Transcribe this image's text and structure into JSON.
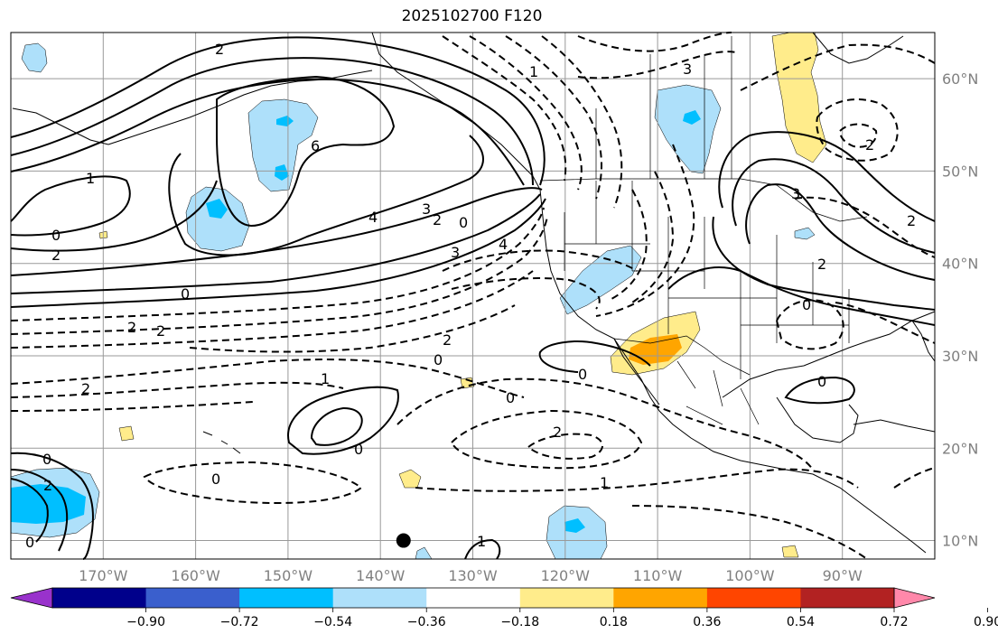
{
  "title": "2025102700 F120",
  "map": {
    "lon_range": [
      -180,
      -80
    ],
    "lat_range": [
      8,
      65
    ],
    "lat_labels": [
      "10°N",
      "20°N",
      "30°N",
      "40°N",
      "50°N",
      "60°N"
    ],
    "lon_labels": [
      "170°W",
      "160°W",
      "150°W",
      "140°W",
      "130°W",
      "120°W",
      "110°W",
      "100°W",
      "90°W"
    ],
    "marker": {
      "lon": -137.5,
      "lat": 10,
      "label": ""
    }
  },
  "colorbar": {
    "tick_labels": [
      "−0.90",
      "−0.72",
      "−0.54",
      "−0.36",
      "−0.18",
      "0.18",
      "0.36",
      "0.54",
      "0.72",
      "0.90"
    ],
    "colors": [
      "#9932cc",
      "#00008b",
      "#3a5fcd",
      "#00bfff",
      "#aee0fa",
      "#ffffff",
      "#ffec8b",
      "#ffa500",
      "#ff4500",
      "#b22222",
      "#ff88aa"
    ]
  },
  "contour_labels": [
    {
      "text": "6"
    },
    {
      "text": "4"
    },
    {
      "text": "3"
    },
    {
      "text": "2"
    },
    {
      "text": "1"
    },
    {
      "text": "0"
    },
    {
      "text": "2"
    },
    {
      "text": "0"
    },
    {
      "text": "2"
    },
    {
      "text": "2"
    },
    {
      "text": "2"
    },
    {
      "text": "0"
    },
    {
      "text": "4"
    },
    {
      "text": "3"
    },
    {
      "text": "2"
    },
    {
      "text": "0"
    },
    {
      "text": "1"
    },
    {
      "text": "0"
    },
    {
      "text": "0"
    },
    {
      "text": "2"
    },
    {
      "text": "1"
    },
    {
      "text": "0"
    },
    {
      "text": "0"
    },
    {
      "text": "2"
    },
    {
      "text": "0"
    },
    {
      "text": "0"
    },
    {
      "text": "3"
    },
    {
      "text": "3"
    },
    {
      "text": "2"
    },
    {
      "text": "1"
    },
    {
      "text": "0"
    },
    {
      "text": "2"
    },
    {
      "text": "2"
    },
    {
      "text": "0"
    },
    {
      "text": "2"
    },
    {
      "text": "1"
    }
  ],
  "colors": {
    "positive_contour": "#000000",
    "negative_contour": "#000000",
    "grid": "#999999",
    "coast": "#000000"
  }
}
